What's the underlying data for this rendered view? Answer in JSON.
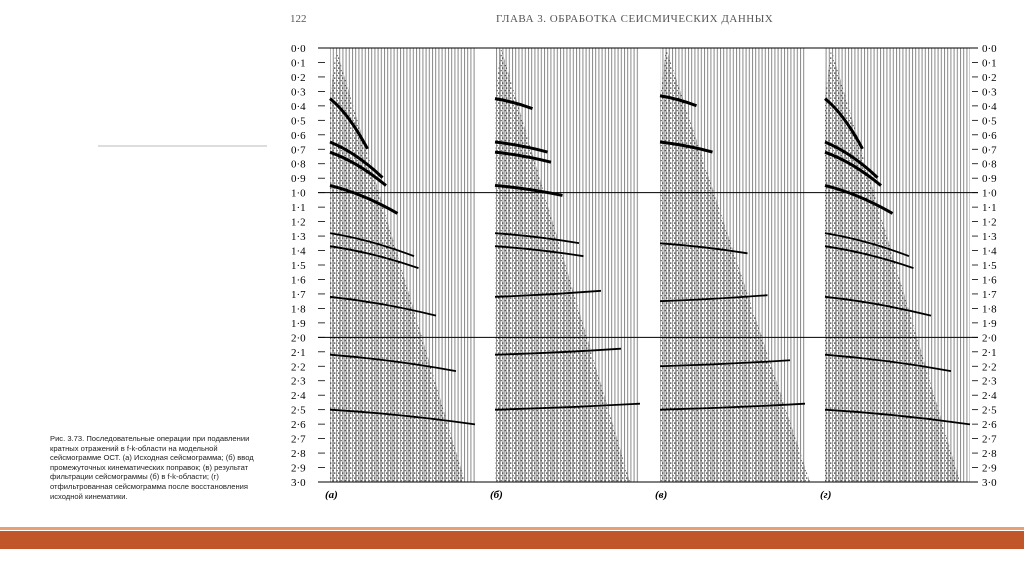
{
  "header": {
    "page_number": "122",
    "running_title": "ГЛАВА 3. ОБРАБОТКА СЕЙСМИЧЕСКИХ ДАННЫХ"
  },
  "figure": {
    "time_labels": [
      "0·0",
      "0·1",
      "0·2",
      "0·3",
      "0·4",
      "0·5",
      "0·6",
      "0·7",
      "0·8",
      "0·9",
      "1·0",
      "1·1",
      "1·2",
      "1·3",
      "1·4",
      "1·5",
      "1·6",
      "1·7",
      "1·8",
      "1·9",
      "2·0",
      "2·1",
      "2·2",
      "2·3",
      "2·4",
      "2·5",
      "2·6",
      "2·7",
      "2·8",
      "2·9",
      "3·0"
    ],
    "panels": [
      "(а)",
      "(б)",
      "(в)",
      "(г)"
    ],
    "caption": "Рис. 3.73. Последовательные операции при подавлении кратных отражений в f-k-области на модельной сейсмограмме ОСТ. (а) Исходная сейсмограмма; (б) ввод промежуточных кинематических поправок; (в) результат фильтрации сейсмограммы (б) в f-k-области; (г) отфильтрованная сейсмограмма после восстановления исходной кинематики."
  }
}
